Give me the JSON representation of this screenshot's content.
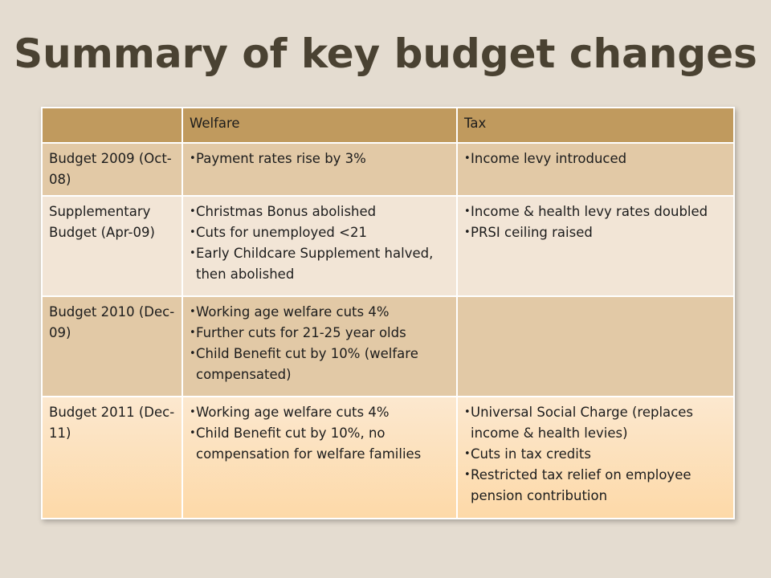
{
  "slide": {
    "title": "Summary of key budget changes"
  },
  "table": {
    "headers": [
      "",
      "Welfare",
      "Tax"
    ],
    "rows": [
      {
        "label": "Budget 2009 (Oct-08)",
        "welfare": [
          "Payment rates rise by 3%"
        ],
        "tax": [
          "Income levy introduced"
        ]
      },
      {
        "label": "Supplementary Budget (Apr-09)",
        "welfare": [
          "Christmas Bonus abolished",
          "Cuts for unemployed <21",
          "Early Childcare Supplement halved, then abolished"
        ],
        "tax": [
          "Income & health levy rates doubled",
          "PRSI ceiling raised"
        ]
      },
      {
        "label": "Budget 2010 (Dec-09)",
        "welfare": [
          "Working age welfare cuts 4%",
          "Further cuts for 21-25 year olds",
          "Child Benefit cut by 10% (welfare compensated)"
        ],
        "tax": []
      },
      {
        "label": "Budget 2011 (Dec-11)",
        "welfare": [
          "Working age welfare cuts 4%",
          "Child Benefit cut by 10%, no compensation for welfare families"
        ],
        "tax": [
          "Universal Social Charge (replaces income & health levies)",
          "Cuts in tax credits",
          "Restricted tax relief on employee pension contribution"
        ]
      }
    ]
  },
  "colors": {
    "header": "#c09a5e",
    "row_dark": "#e2c9a6",
    "row_light": "#f2e5d6",
    "background": "#e4dcd0",
    "title": "#4a4232"
  }
}
